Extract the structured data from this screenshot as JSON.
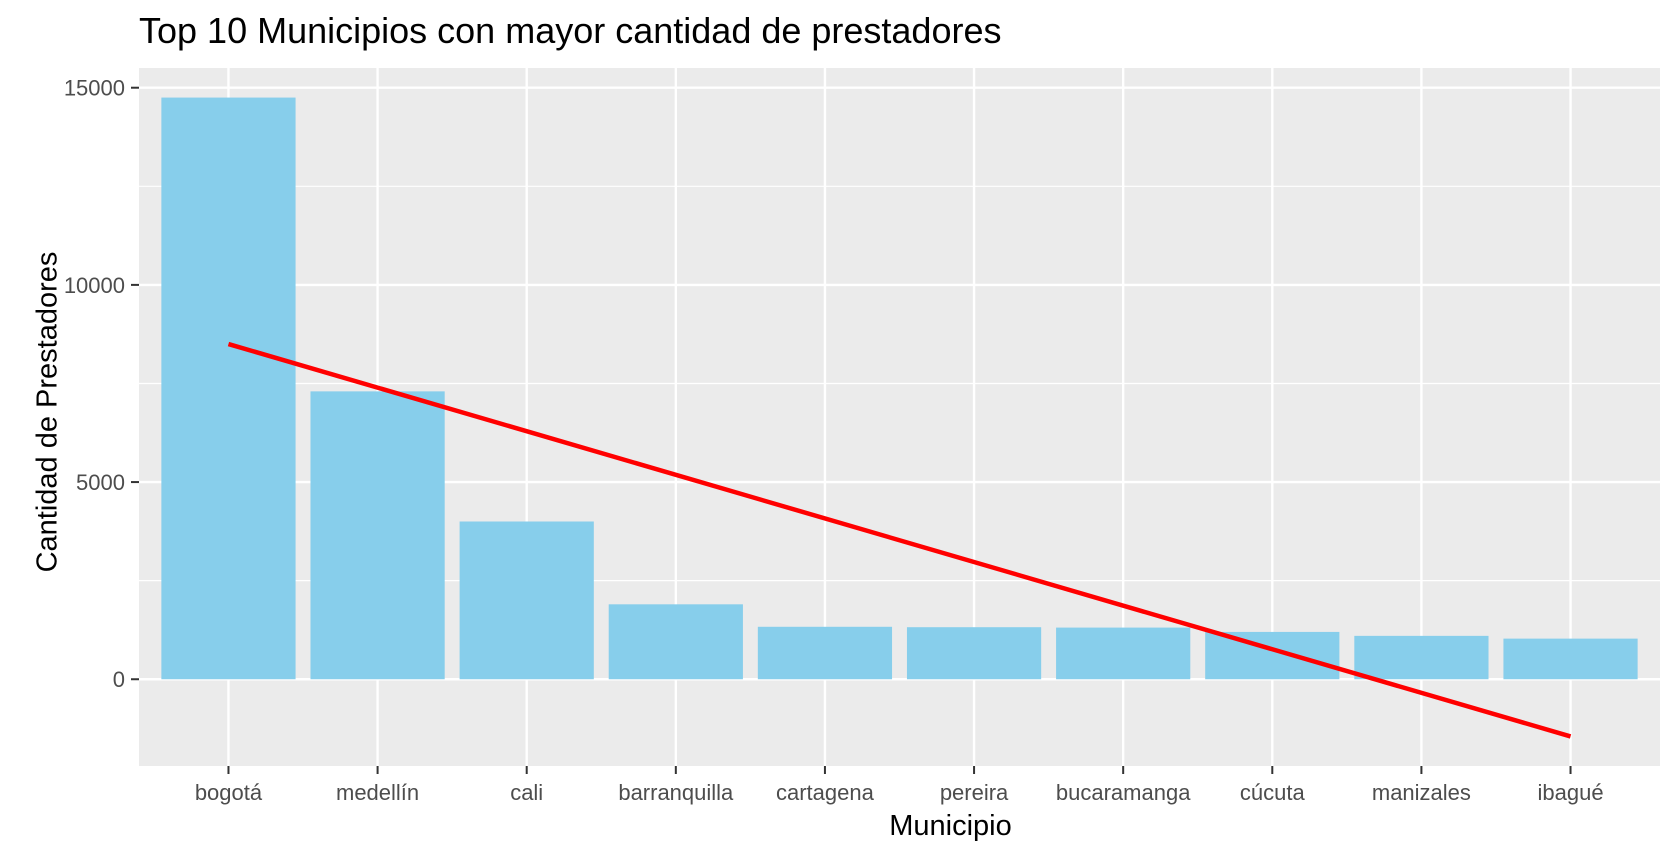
{
  "chart_data": {
    "type": "bar",
    "title": "Top 10 Municipios con mayor cantidad de prestadores",
    "xlabel": "Municipio",
    "ylabel": "Cantidad de Prestadores",
    "categories": [
      "bogotá",
      "medellín",
      "cali",
      "barranquilla",
      "cartagena",
      "pereira",
      "bucaramanga",
      "cúcuta",
      "manizales",
      "ibagué"
    ],
    "values": [
      14750,
      7300,
      4000,
      1900,
      1330,
      1320,
      1310,
      1200,
      1100,
      1030
    ],
    "ylim": [
      -2200,
      15500
    ],
    "yticks": [
      0,
      5000,
      10000,
      15000
    ],
    "grid": true,
    "trend_line": {
      "type": "line",
      "start": 8500,
      "end": -1450,
      "color": "#ff0000"
    },
    "colors": {
      "bar": "#87ceeb",
      "panel": "#ebebeb",
      "grid": "#ffffff",
      "trend": "#ff0000"
    }
  }
}
